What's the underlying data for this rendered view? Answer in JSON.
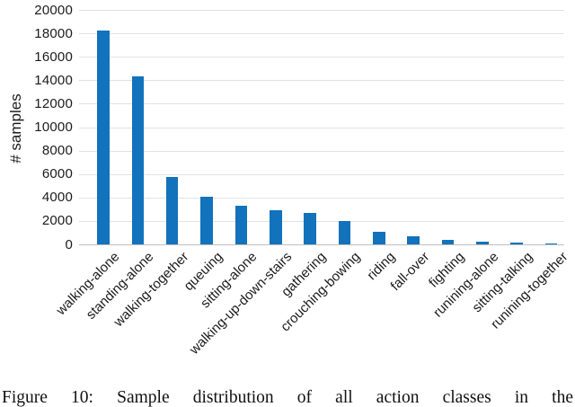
{
  "figure": {
    "caption": "Figure 10: Sample distribution of all action classes in the"
  },
  "chart_data": {
    "type": "bar",
    "title": "",
    "xlabel": "",
    "ylabel": "# samples",
    "categories": [
      "walking-alone",
      "standing-alone",
      "walking-together",
      "queuing",
      "sitting-alone",
      "walking-up-down-stairs",
      "gathering",
      "crouching-bowing",
      "riding",
      "fall-over",
      "fighting",
      "runining-alone",
      "sitting-talking",
      "runining-together"
    ],
    "values": [
      18300,
      14400,
      5800,
      4100,
      3350,
      2950,
      2750,
      2050,
      1100,
      700,
      450,
      250,
      200,
      150
    ],
    "ylim": [
      0,
      20000
    ],
    "ytick_step": 2000,
    "ytick_labels": [
      "0",
      "2000",
      "4000",
      "6000",
      "8000",
      "10000",
      "12000",
      "14000",
      "16000",
      "18000",
      "20000"
    ],
    "grid": "horizontal",
    "legend": "none",
    "x_label_rotation_deg": 45,
    "bar_color": "#1272bc",
    "gridline_color": "#e2e2e2",
    "axis_line_color": "#bfbfbf",
    "text_color": "#1b1b1b"
  }
}
